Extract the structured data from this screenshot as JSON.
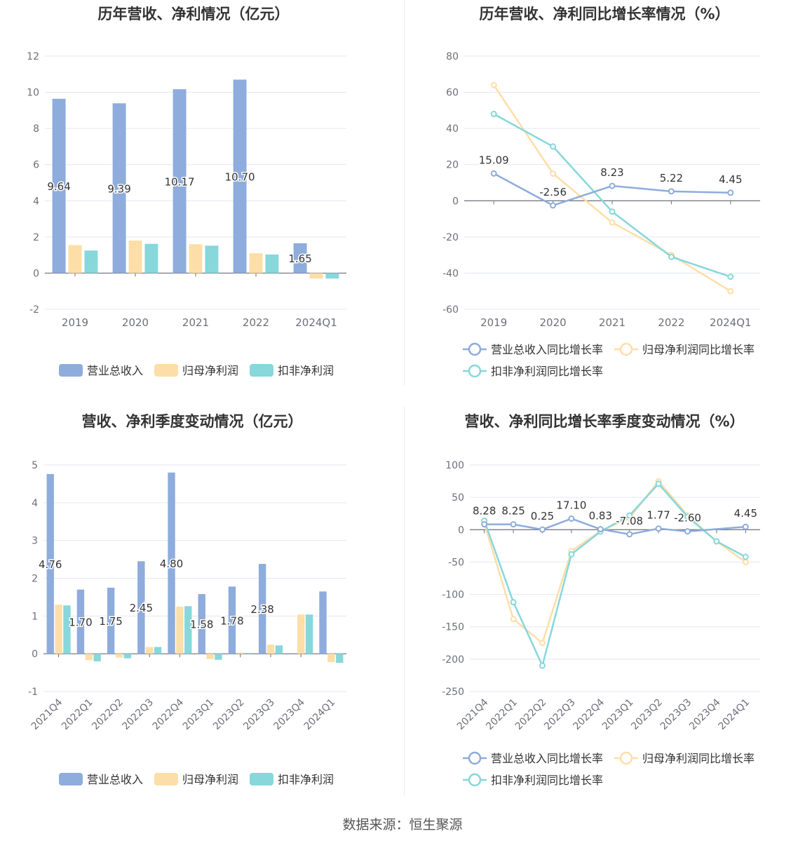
{
  "source": "数据来源：恒生聚源",
  "colors": {
    "revenue": "#8eacdc",
    "net": "#fedea8",
    "deducted": "#87d7db",
    "grid": "#e3e7f0",
    "axis": "#6e7079",
    "tick_label": "#6e7079",
    "title": "#333333"
  },
  "chart_data": [
    {
      "type": "bar",
      "title": "历年营收、净利情况（亿元）",
      "categories": [
        "2019",
        "2020",
        "2021",
        "2022",
        "2024Q1"
      ],
      "ylim": [
        -2,
        12
      ],
      "yticks": [
        -2,
        0,
        2,
        4,
        6,
        8,
        10,
        12
      ],
      "series": [
        {
          "name": "营业总收入",
          "values": [
            9.64,
            9.39,
            10.17,
            10.7,
            1.65
          ],
          "labels": [
            "9.64",
            "9.39",
            "10.17",
            "10.70",
            "1.65"
          ]
        },
        {
          "name": "归母净利润",
          "values": [
            1.55,
            1.8,
            1.6,
            1.1,
            -0.3
          ]
        },
        {
          "name": "扣非净利润",
          "values": [
            1.25,
            1.62,
            1.52,
            1.03,
            -0.3
          ]
        }
      ],
      "grid": true,
      "legend": "bottom"
    },
    {
      "type": "line",
      "title": "历年营收、净利同比增长率情况（%）",
      "categories": [
        "2019",
        "2020",
        "2021",
        "2022",
        "2024Q1"
      ],
      "ylim": [
        -60,
        80
      ],
      "yticks": [
        -60,
        -40,
        -20,
        0,
        20,
        40,
        60,
        80
      ],
      "series": [
        {
          "name": "营业总收入同比增长率",
          "values": [
            15.09,
            -2.56,
            8.23,
            5.22,
            4.45
          ],
          "labels": [
            "15.09",
            "-2.56",
            "8.23",
            "5.22",
            "4.45"
          ]
        },
        {
          "name": "归母净利润同比增长率",
          "values": [
            64,
            15,
            -12,
            -30,
            -50
          ]
        },
        {
          "name": "扣非净利润同比增长率",
          "values": [
            48,
            30,
            -6,
            -31,
            -42
          ]
        }
      ],
      "grid": true,
      "legend": "bottom"
    },
    {
      "type": "bar",
      "title": "营收、净利季度变动情况（亿元）",
      "categories": [
        "2021Q4",
        "2022Q1",
        "2022Q2",
        "2022Q3",
        "2022Q4",
        "2023Q1",
        "2023Q2",
        "2023Q3",
        "2023Q4",
        "2024Q1"
      ],
      "ylim": [
        -1,
        5
      ],
      "yticks": [
        -1,
        0,
        1,
        2,
        3,
        4,
        5
      ],
      "series": [
        {
          "name": "营业总收入",
          "values": [
            4.76,
            1.7,
            1.75,
            2.45,
            4.8,
            1.58,
            1.78,
            2.38,
            null,
            1.65
          ],
          "labels": [
            "4.76",
            "1.70",
            "1.75",
            "2.45",
            "4.80",
            "1.58",
            "1.78",
            "2.38",
            "",
            ""
          ]
        },
        {
          "name": "归母净利润",
          "values": [
            1.3,
            -0.17,
            -0.1,
            0.18,
            1.25,
            -0.14,
            0.03,
            0.24,
            1.04,
            -0.22
          ]
        },
        {
          "name": "扣非净利润",
          "values": [
            1.28,
            -0.2,
            -0.12,
            0.18,
            1.26,
            -0.16,
            0.02,
            0.22,
            1.04,
            -0.24
          ]
        }
      ],
      "grid": true,
      "legend": "bottom"
    },
    {
      "type": "line",
      "title": "营收、净利同比增长率季度变动情况（%）",
      "categories": [
        "2021Q4",
        "2022Q1",
        "2022Q2",
        "2022Q3",
        "2022Q4",
        "2023Q1",
        "2023Q2",
        "2023Q3",
        "2023Q4",
        "2024Q1"
      ],
      "ylim": [
        -250,
        100
      ],
      "yticks": [
        -250,
        -200,
        -150,
        -100,
        -50,
        0,
        50,
        100
      ],
      "series": [
        {
          "name": "营业总收入同比增长率",
          "values": [
            8.28,
            8.25,
            0.25,
            17.1,
            0.83,
            -7.08,
            1.77,
            -2.6,
            null,
            4.45
          ],
          "labels": [
            "8.28",
            "8.25",
            "0.25",
            "17.10",
            "0.83",
            "-7.08",
            "1.77",
            "-2.60",
            "",
            "4.45"
          ]
        },
        {
          "name": "归母净利润同比增长率",
          "values": [
            10,
            -138,
            -175,
            -33,
            -2,
            18,
            75,
            22,
            -18,
            -50
          ]
        },
        {
          "name": "扣非净利润同比增长率",
          "values": [
            14,
            -112,
            -210,
            -38,
            -3,
            22,
            71,
            20,
            -18,
            -42
          ]
        }
      ],
      "grid": true,
      "legend": "bottom"
    }
  ]
}
